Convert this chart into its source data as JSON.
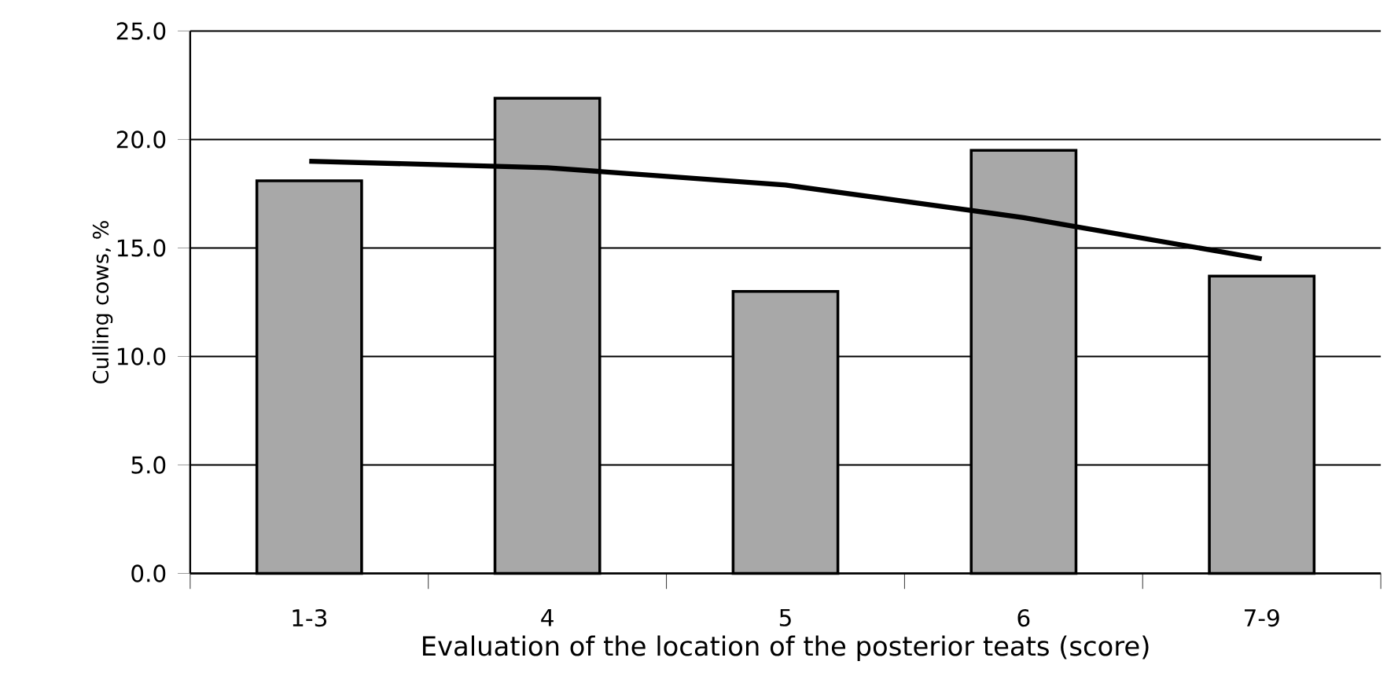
{
  "chart_data": {
    "type": "bar",
    "xlabel": "Evaluation of the location of the posterior teats (score)",
    "ylabel": "Culling cows, %",
    "categories": [
      "1-3",
      "4",
      "5",
      "6",
      "7-9"
    ],
    "series": [
      {
        "color": "#a8a8a8",
        "values": [
          18.1,
          21.9,
          13.0,
          19.5,
          13.7
        ]
      },
      {
        "type": "line",
        "color": "#000000",
        "values": [
          19.0,
          18.7,
          17.9,
          16.4,
          14.5
        ]
      }
    ],
    "ylim": [
      0,
      25
    ],
    "yticks": [
      {
        "value": 0,
        "label": "0.0"
      },
      {
        "value": 5,
        "label": "5.0"
      },
      {
        "value": 10,
        "label": "10.0"
      },
      {
        "value": 15,
        "label": "15.0"
      },
      {
        "value": 20,
        "label": "20.0"
      },
      {
        "value": 25,
        "label": "25.0"
      }
    ],
    "grid": "y"
  }
}
